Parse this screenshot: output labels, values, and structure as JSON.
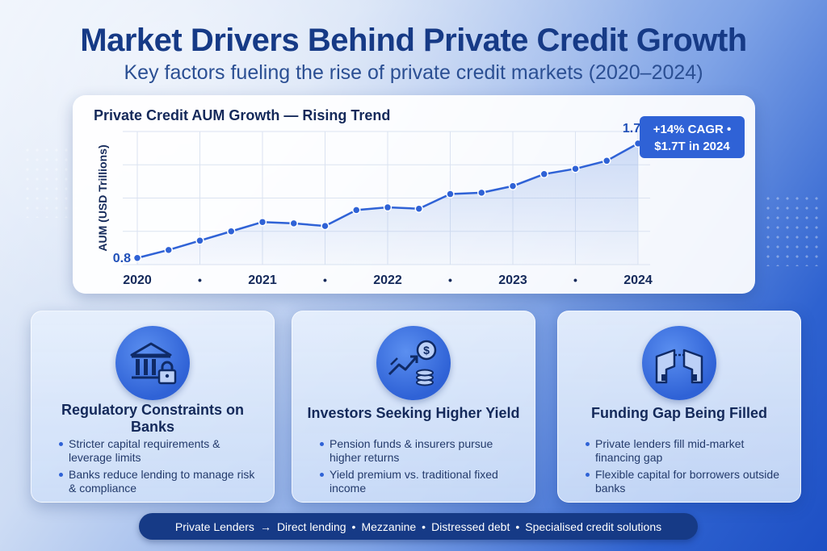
{
  "header": {
    "title": "Market Drivers Behind Private Credit Growth",
    "subtitle": "Key factors fueling the rise of private credit markets (2020–2024)"
  },
  "chart_data": {
    "type": "line",
    "title": "Private Credit AUM Growth — Rising Trend",
    "ylabel": "AUM (USD Trillions)",
    "xlabel": "",
    "x_tick_labels": [
      "2020",
      "•",
      "2021",
      "•",
      "2022",
      "•",
      "2023",
      "•",
      "2024"
    ],
    "x": [
      0,
      1,
      2,
      3,
      4,
      5,
      6,
      7,
      8,
      9,
      10,
      11,
      12,
      13,
      14,
      15,
      16
    ],
    "xlim": [
      0,
      16
    ],
    "ylim": [
      0.75,
      1.75
    ],
    "grid": true,
    "series": [
      {
        "name": "",
        "color": "#2f62d6",
        "values": [
          0.8,
          0.86,
          0.93,
          1.0,
          1.07,
          1.06,
          1.04,
          1.16,
          1.18,
          1.17,
          1.28,
          1.29,
          1.34,
          1.43,
          1.47,
          1.53,
          1.66
        ]
      }
    ],
    "data_labels": {
      "start": "0.8",
      "end": "1.7"
    },
    "callout": "+14% CAGR • $1.7T in 2024"
  },
  "cards": [
    {
      "icon": "bank-lock-icon",
      "title": "Regulatory Constraints on Banks",
      "bullets": [
        "Stricter capital requirements & leverage limits",
        "Banks reduce lending to manage risk & compliance"
      ]
    },
    {
      "icon": "growth-dollar-icon",
      "title": "Investors Seeking Higher Yield",
      "bullets": [
        "Pension funds & insurers pursue higher returns",
        "Yield premium vs. traditional fixed income"
      ]
    },
    {
      "icon": "bridge-gap-icon",
      "title": "Funding Gap Being Filled",
      "bullets": [
        "Private lenders fill mid-market financing gap",
        "Flexible capital for borrowers outside banks"
      ]
    }
  ],
  "footer": {
    "items": [
      "Private Lenders",
      "Direct lending",
      "Mezzanine",
      "Distressed debt",
      "Specialised credit solutions"
    ],
    "arrow": "→",
    "dot": "•"
  },
  "colors": {
    "accent": "#2f62d6",
    "title": "#163a86",
    "callout_bg": "#2f62d6"
  }
}
